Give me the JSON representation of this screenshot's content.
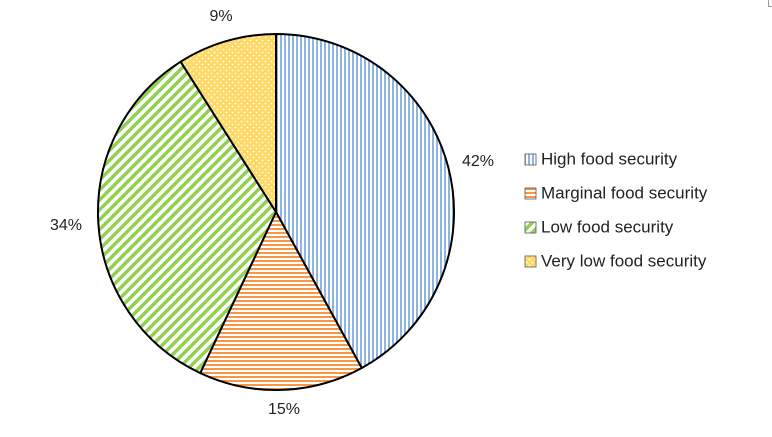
{
  "chart_data": {
    "type": "pie",
    "title": "",
    "legend_position": "right",
    "start_angle": "12 o'clock",
    "direction": "clockwise",
    "slices": [
      {
        "label": "High food security",
        "value": 42,
        "display": "42%",
        "color": "#8db4e2",
        "pattern": "vertical-lines"
      },
      {
        "label": "Marginal food security",
        "value": 15,
        "display": "15%",
        "color": "#f79646",
        "pattern": "horizontal-lines"
      },
      {
        "label": "Low food security",
        "value": 34,
        "display": "34%",
        "color": "#92d050",
        "pattern": "diagonal-lines"
      },
      {
        "label": "Very low food security",
        "value": 9,
        "display": "9%",
        "color": "#ffd966",
        "pattern": "dots"
      }
    ]
  }
}
